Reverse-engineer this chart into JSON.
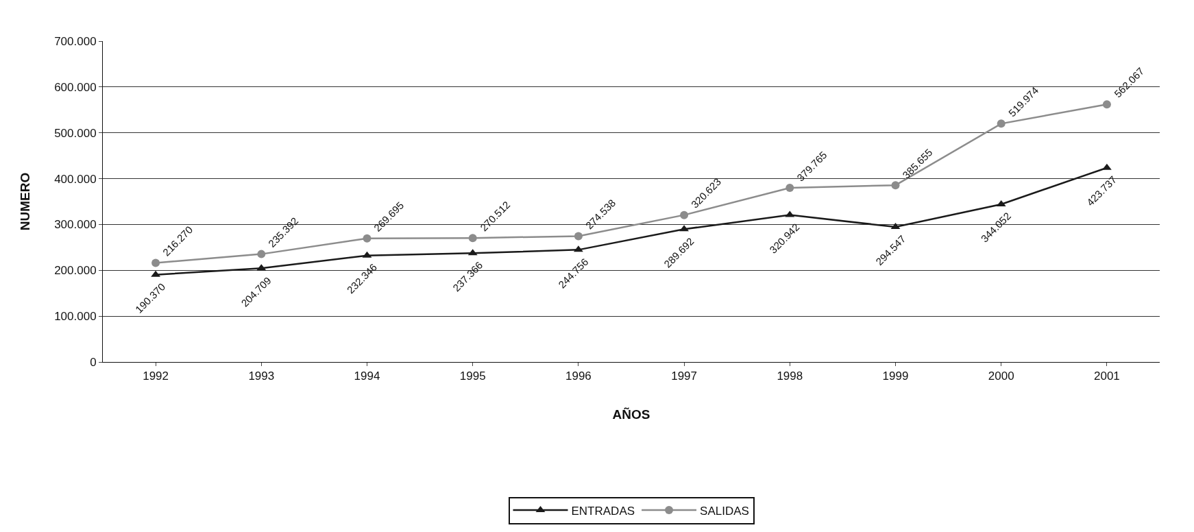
{
  "chart_data": {
    "type": "line",
    "xlabel": "AÑOS",
    "ylabel": "NUMERO",
    "categories": [
      "1992",
      "1993",
      "1994",
      "1995",
      "1996",
      "1997",
      "1998",
      "1999",
      "2000",
      "2001"
    ],
    "series": [
      {
        "name": "ENTRADAS",
        "color": "#1a1a1a",
        "marker": "triangle",
        "values": [
          190370,
          204709,
          232346,
          237366,
          244756,
          289692,
          320942,
          294547,
          344052,
          423737
        ],
        "value_labels": [
          "190.370",
          "204.709",
          "232.346",
          "237.366",
          "244.756",
          "289.692",
          "320.942",
          "294.547",
          "344.052",
          "423.737"
        ]
      },
      {
        "name": "SALIDAS",
        "color": "#8c8c8c",
        "marker": "circle",
        "values": [
          216270,
          235392,
          269695,
          270512,
          274538,
          320623,
          379765,
          385655,
          519974,
          562067
        ],
        "value_labels": [
          "216.270",
          "235.392",
          "269.695",
          "270.512",
          "274.538",
          "320.623",
          "379.765",
          "385.655",
          "519.974",
          "562.067"
        ]
      }
    ],
    "ylim": [
      0,
      700000
    ],
    "yticks": [
      0,
      {
        "value": 100000,
        "label": "100.000"
      },
      {
        "value": 200000,
        "label": "200.000"
      },
      {
        "value": 300000,
        "label": "300.000"
      },
      {
        "value": 400000,
        "label": "400.000"
      },
      {
        "value": 500000,
        "label": "500.000"
      },
      {
        "value": 600000,
        "label": "600.000"
      },
      {
        "value": 700000,
        "label": "700.000"
      }
    ],
    "grid": "y",
    "legend": "bottom",
    "line_style": "solid"
  }
}
